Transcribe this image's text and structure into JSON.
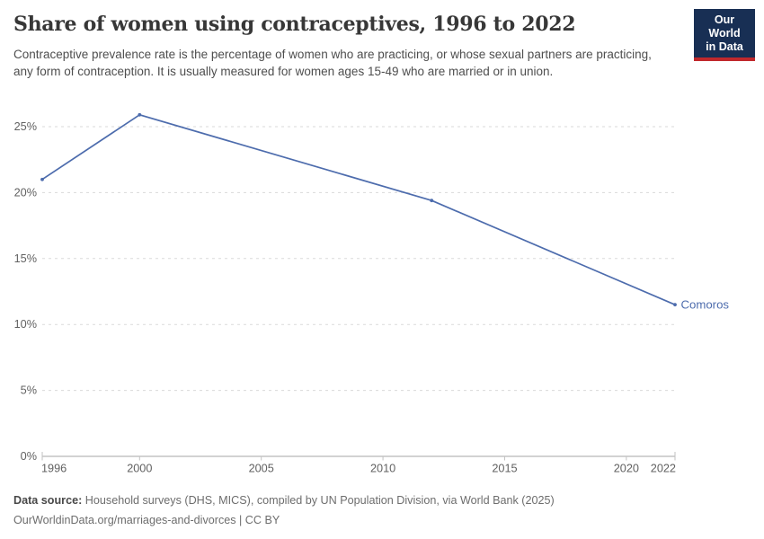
{
  "header": {
    "title": "Share of women using contraceptives, 1996 to 2022",
    "subtitle": "Contraceptive prevalence rate is the percentage of women who are practicing, or whose sexual partners are practicing, any form of contraception. It is usually measured for women ages 15-49 who are married or in union.",
    "logo": {
      "line1": "Our World",
      "line2": "in Data"
    }
  },
  "chart_data": {
    "type": "line",
    "title": "Share of women using contraceptives, 1996 to 2022",
    "x": [
      1996,
      2000,
      2012,
      2022
    ],
    "series": [
      {
        "name": "Comoros",
        "color": "#4d6cad",
        "values": [
          21.0,
          25.9,
          19.4,
          11.5
        ]
      }
    ],
    "xlabel": "",
    "ylabel": "",
    "xlim": [
      1996,
      2022
    ],
    "ylim": [
      0,
      26.6
    ],
    "x_ticks": [
      1996,
      2000,
      2005,
      2010,
      2015,
      2020,
      2022
    ],
    "y_ticks": [
      0,
      5,
      10,
      15,
      20,
      25
    ],
    "y_tick_format": "{v}%",
    "grid": "horizontal-dashed",
    "legend": "end-of-line-label"
  },
  "footer": {
    "source_label": "Data source:",
    "source_text": " Household surveys (DHS, MICS), compiled by UN Population Division, via World Bank (2025)",
    "citation": "OurWorldinData.org/marriages-and-divorces | CC BY"
  },
  "colors": {
    "line": "#4d6cad",
    "grid": "#dadada",
    "axis": "#a6a6a6",
    "tick": "#c2c2c2",
    "tick_label": "#616161",
    "logo_bg": "#182f54",
    "logo_stripe": "#c0282c"
  }
}
